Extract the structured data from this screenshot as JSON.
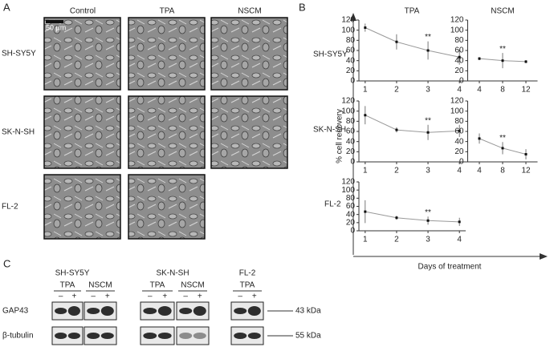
{
  "panel_labels": [
    "A",
    "B",
    "C"
  ],
  "panel_a": {
    "columns": [
      "Control",
      "TPA",
      "NSCM"
    ],
    "rows": [
      "SH-SY5Y",
      "SK-N-SH",
      "FL-2"
    ],
    "scale_bar": "50 µm"
  },
  "panel_b": {
    "column_titles": [
      "TPA",
      "NSCM"
    ],
    "row_labels": [
      "SH-SY5Y",
      "SK-N-SH",
      "FL-2"
    ],
    "y_label": "% cell recovery",
    "x_label": "Days of treatment"
  },
  "chart_data": [
    {
      "type": "line",
      "x": [
        1,
        2,
        3,
        4
      ],
      "values": [
        105,
        77,
        60,
        47
      ],
      "errors": [
        8,
        15,
        18,
        15
      ],
      "xlim": [
        0.8,
        4.2
      ],
      "xticks": [
        1,
        2,
        3,
        4
      ],
      "ylim": [
        0,
        120
      ],
      "yticks": [
        0,
        20,
        40,
        60,
        80,
        100,
        120
      ],
      "annotations": [
        {
          "x": 3,
          "text": "**"
        }
      ]
    },
    {
      "type": "line",
      "x": [
        4,
        8,
        12
      ],
      "values": [
        44,
        40,
        38
      ],
      "errors": [
        3,
        15,
        3
      ],
      "xlim": [
        2,
        14
      ],
      "xticks": [
        4,
        8,
        12
      ],
      "ylim": [
        0,
        120
      ],
      "yticks": [
        0,
        20,
        40,
        60,
        80,
        100,
        120
      ],
      "annotations": [
        {
          "x": 8,
          "text": "**"
        }
      ]
    },
    {
      "type": "line",
      "x": [
        1,
        2,
        3,
        4
      ],
      "values": [
        92,
        63,
        58,
        61
      ],
      "errors": [
        18,
        5,
        15,
        12
      ],
      "xlim": [
        0.8,
        4.2
      ],
      "xticks": [
        1,
        2,
        3,
        4
      ],
      "ylim": [
        0,
        120
      ],
      "yticks": [
        0,
        20,
        40,
        60,
        80,
        100,
        120
      ],
      "annotations": [
        {
          "x": 3,
          "text": "**"
        }
      ]
    },
    {
      "type": "line",
      "x": [
        4,
        8,
        12
      ],
      "values": [
        46,
        27,
        15
      ],
      "errors": [
        10,
        12,
        10
      ],
      "xlim": [
        2,
        14
      ],
      "xticks": [
        4,
        8,
        12
      ],
      "ylim": [
        0,
        120
      ],
      "yticks": [
        0,
        20,
        40,
        60,
        80,
        100,
        120
      ],
      "annotations": [
        {
          "x": 8,
          "text": "**"
        }
      ]
    },
    {
      "type": "line",
      "x": [
        1,
        2,
        3,
        4
      ],
      "values": [
        47,
        32,
        25,
        22
      ],
      "errors": [
        28,
        5,
        10,
        10
      ],
      "xlim": [
        0.8,
        4.2
      ],
      "xticks": [
        1,
        2,
        3,
        4
      ],
      "ylim": [
        0,
        120
      ],
      "yticks": [
        0,
        20,
        40,
        60,
        80,
        100,
        120
      ],
      "annotations": [
        {
          "x": 3,
          "text": "**"
        }
      ]
    }
  ],
  "panel_c": {
    "groups": [
      {
        "name": "SH-SY5Y",
        "treatments": [
          "TPA",
          "NSCM"
        ]
      },
      {
        "name": "SK-N-SH",
        "treatments": [
          "TPA",
          "NSCM"
        ]
      },
      {
        "name": "FL-2",
        "treatments": [
          "TPA"
        ]
      }
    ],
    "signs": [
      "–",
      "+"
    ],
    "rows": [
      {
        "name": "GAP43",
        "size": "43 kDa"
      },
      {
        "name": "β-tubulin",
        "size": "55 kDa"
      }
    ]
  }
}
